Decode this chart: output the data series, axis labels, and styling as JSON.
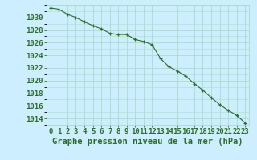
{
  "x": [
    0,
    1,
    2,
    3,
    4,
    5,
    6,
    7,
    8,
    9,
    10,
    11,
    12,
    13,
    14,
    15,
    16,
    17,
    18,
    19,
    20,
    21,
    22,
    23
  ],
  "y": [
    1031.5,
    1031.3,
    1030.5,
    1030.0,
    1029.3,
    1028.7,
    1028.2,
    1027.5,
    1027.3,
    1027.3,
    1026.5,
    1026.2,
    1025.7,
    1023.5,
    1022.2,
    1021.5,
    1020.7,
    1019.5,
    1018.5,
    1017.3,
    1016.2,
    1015.3,
    1014.5,
    1013.3
  ],
  "line_color": "#2d6a2d",
  "marker": "+",
  "bg_color": "#cceeff",
  "grid_color": "#aaddcc",
  "ylabel_ticks": [
    1014,
    1016,
    1018,
    1020,
    1022,
    1024,
    1026,
    1028,
    1030
  ],
  "ylim": [
    1013.0,
    1032.0
  ],
  "xlim": [
    -0.5,
    23.5
  ],
  "xlabel": "Graphe pression niveau de la mer (hPa)",
  "xlabel_fontsize": 7.5,
  "tick_fontsize": 6.5,
  "line_color_dark": "#1a4d1a"
}
